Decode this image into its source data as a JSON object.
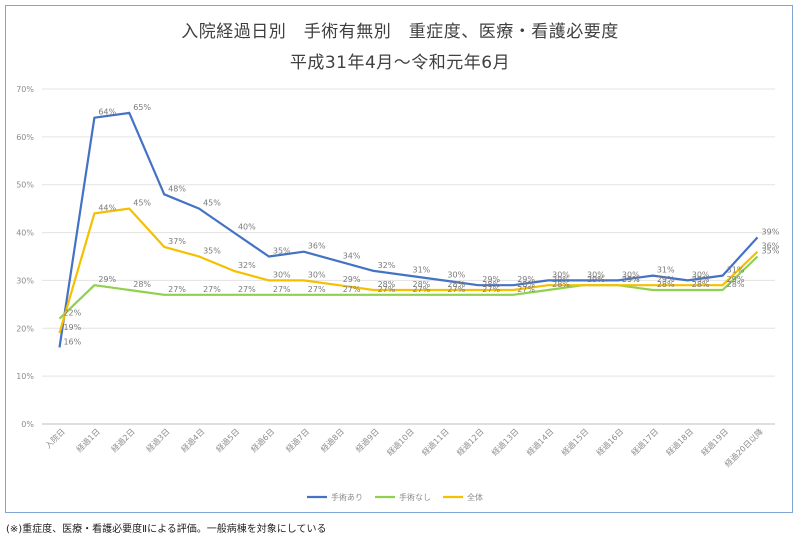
{
  "chart_data": {
    "type": "line",
    "title": "入院経過日別　手術有無別　重症度、医療・看護必要度",
    "subtitle": "平成31年4月～令和元年6月",
    "categories": [
      "入院日",
      "経過1日",
      "経過2日",
      "経過3日",
      "経過4日",
      "経過5日",
      "経過6日",
      "経過7日",
      "経過8日",
      "経過9日",
      "経過10日",
      "経過11日",
      "経過12日",
      "経過13日",
      "経過14日",
      "経過15日",
      "経過16日",
      "経過17日",
      "経過18日",
      "経過19日",
      "経過20日以降"
    ],
    "y_ticks": [
      "0%",
      "10%",
      "20%",
      "30%",
      "40%",
      "50%",
      "60%",
      "70%"
    ],
    "ylim": [
      0,
      70
    ],
    "grid": true,
    "legend_position": "bottom",
    "series": [
      {
        "name": "手術あり",
        "color": "#4472c4",
        "values": [
          16,
          64,
          65,
          48,
          45,
          40,
          35,
          36,
          34,
          32,
          31,
          30,
          29,
          29,
          30,
          30,
          30,
          31,
          30,
          31,
          39
        ],
        "labels": [
          "16%",
          "64%",
          "65%",
          "48%",
          "45%",
          "40%",
          "35%",
          "36%",
          "34%",
          "32%",
          "31%",
          "30%",
          "29%",
          "29%",
          "30%",
          "30%",
          "30%",
          "31%",
          "30%",
          "31%",
          "39%"
        ]
      },
      {
        "name": "手術なし",
        "color": "#8fd14f",
        "values": [
          22,
          29,
          28,
          27,
          27,
          27,
          27,
          27,
          27,
          27,
          27,
          27,
          27,
          27,
          28,
          29,
          29,
          28,
          28,
          28,
          35
        ],
        "labels": [
          "22%",
          "29%",
          "28%",
          "27%",
          "27%",
          "27%",
          "27%",
          "27%",
          "27%",
          "27%",
          "27%",
          "27%",
          "27%",
          "27%",
          "28%",
          "29%",
          "29%",
          "28%",
          "28%",
          "28%",
          "35%"
        ]
      },
      {
        "name": "全体",
        "color": "#f5c000",
        "values": [
          19,
          44,
          45,
          37,
          35,
          32,
          30,
          30,
          29,
          28,
          28,
          28,
          28,
          28,
          29,
          29,
          29,
          29,
          29,
          29,
          36
        ],
        "labels": [
          "19%",
          "44%",
          "45%",
          "37%",
          "35%",
          "32%",
          "30%",
          "30%",
          "29%",
          "28%",
          "28%",
          "28%",
          "28%",
          "28%",
          "29%",
          "29%",
          "29%",
          "29%",
          "29%",
          "29%",
          "36%"
        ]
      }
    ]
  },
  "footnote": "(※)重症度、医療・看護必要度Ⅱによる評価。一般病棟を対象にしている"
}
